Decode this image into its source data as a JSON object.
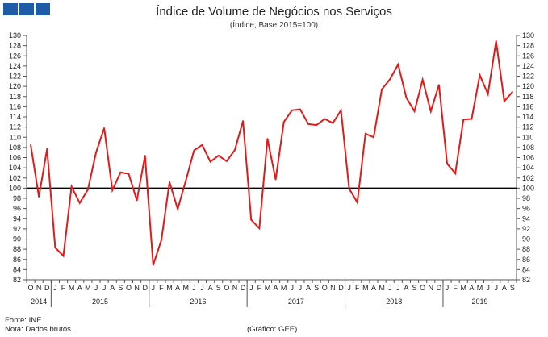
{
  "header": {
    "title": "Índice de Volume de Negócios nos Serviços",
    "subtitle": "(Índice, Base 2015=100)"
  },
  "footer": {
    "source": "Fonte: INE",
    "note": "Nota: Dados brutos.",
    "graph_credit": "(Gráfico: GEE)"
  },
  "colors": {
    "series": "#e01b1b",
    "reference": "#000000",
    "logo": "#1f5ca8"
  },
  "chart_data": {
    "type": "line",
    "title": "Índice de Volume de Negócios nos Serviços",
    "subtitle": "(Índice, Base 2015=100)",
    "ylim": [
      82,
      130
    ],
    "y_ticks": [
      82,
      84,
      86,
      88,
      90,
      92,
      94,
      96,
      98,
      100,
      102,
      104,
      106,
      108,
      110,
      112,
      114,
      116,
      118,
      120,
      122,
      124,
      126,
      128,
      130
    ],
    "y_axis_both_sides": true,
    "reference_line": 100,
    "grid": false,
    "month_labels": [
      "O",
      "N",
      "D",
      "J",
      "F",
      "M",
      "A",
      "M",
      "J",
      "J",
      "A",
      "S",
      "O",
      "N",
      "D",
      "J",
      "F",
      "M",
      "A",
      "M",
      "J",
      "J",
      "A",
      "S",
      "O",
      "N",
      "D",
      "J",
      "F",
      "M",
      "A",
      "M",
      "J",
      "J",
      "A",
      "S",
      "O",
      "N",
      "D",
      "J",
      "F",
      "M",
      "A",
      "M",
      "J",
      "J",
      "A",
      "S",
      "O",
      "N",
      "D",
      "J",
      "F",
      "M",
      "A",
      "M",
      "J",
      "J",
      "A",
      "S"
    ],
    "years": [
      {
        "label": "2014",
        "months": 3
      },
      {
        "label": "2015",
        "months": 12
      },
      {
        "label": "2016",
        "months": 12
      },
      {
        "label": "2017",
        "months": 12
      },
      {
        "label": "2018",
        "months": 12
      },
      {
        "label": "2019",
        "months": 9
      }
    ],
    "series": [
      {
        "values": [
          108.5,
          98.3,
          107.7,
          88.3,
          86.7,
          100.3,
          97.1,
          99.7,
          107.0,
          111.8,
          99.6,
          103.1,
          102.8,
          97.6,
          106.4,
          84.9,
          89.8,
          101.2,
          95.9,
          101.5,
          107.4,
          108.5,
          105.2,
          106.4,
          105.3,
          107.5,
          113.2,
          93.8,
          92.1,
          109.7,
          101.7,
          113.0,
          115.3,
          115.5,
          112.6,
          112.4,
          113.6,
          112.8,
          115.3,
          99.9,
          97.2,
          110.7,
          110.0,
          119.4,
          121.4,
          124.3,
          117.8,
          115.1,
          121.3,
          115.1,
          120.3,
          104.8,
          102.9,
          113.5,
          113.6,
          122.2,
          118.5,
          128.9,
          117.1,
          118.9
        ]
      }
    ]
  }
}
